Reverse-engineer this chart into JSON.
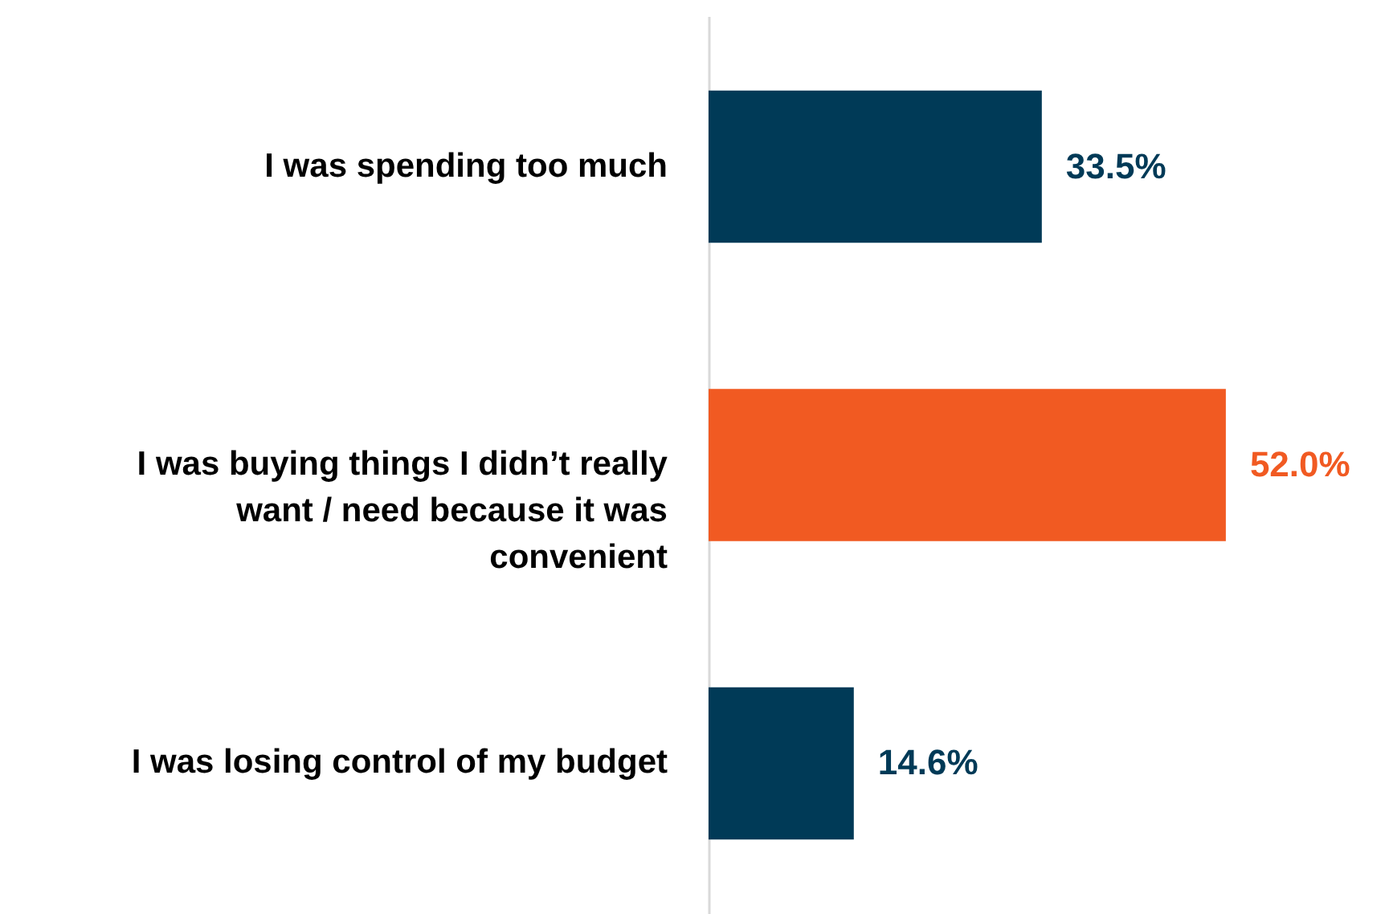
{
  "chart_data": {
    "type": "bar",
    "orientation": "horizontal",
    "categories": [
      "I was spending too much",
      "I was buying things I didn’t really want / need because it was convenient",
      "I was losing control of my budget"
    ],
    "values": [
      33.5,
      52.0,
      14.6
    ],
    "colors": [
      "#003a57",
      "#f15a22",
      "#003a57"
    ],
    "value_labels": [
      "33.5%",
      "52.0%",
      "14.6%"
    ],
    "xlim": [
      0,
      68
    ],
    "tick_labels": "y"
  }
}
